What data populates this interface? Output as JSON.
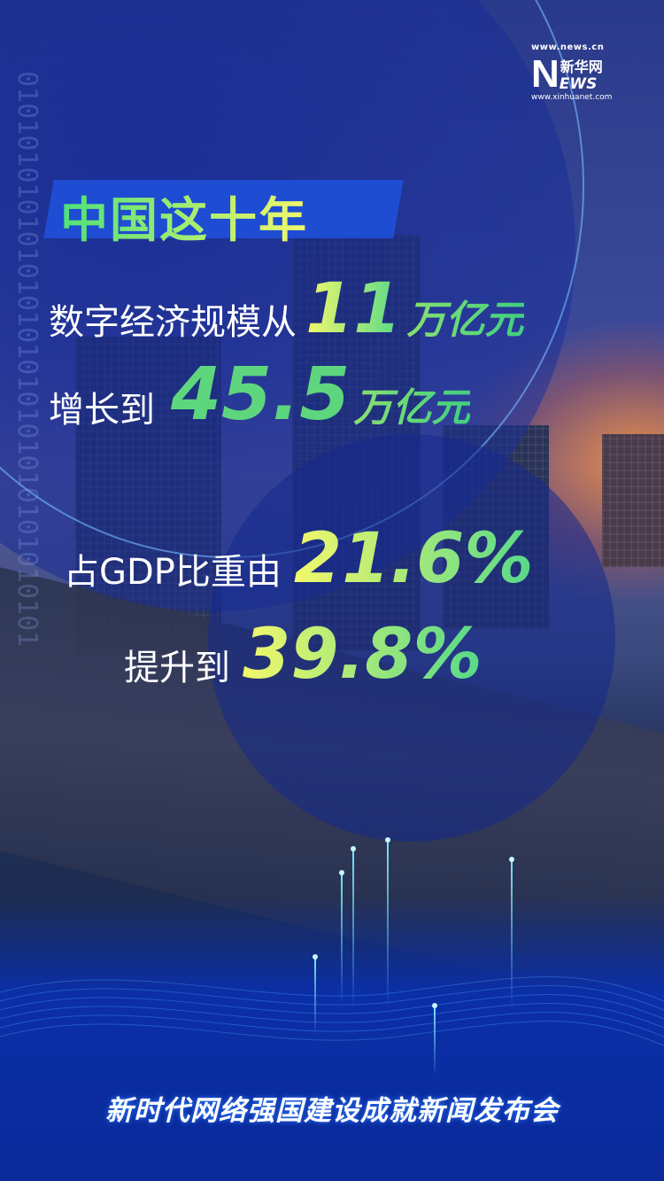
{
  "logo": {
    "url_top": "www.news.cn",
    "brand_cn": "新华网",
    "brand_letter": "N",
    "brand_rest": "EWS",
    "url_bottom": "www.xinhuanet.com"
  },
  "title": "中国这十年",
  "stat1": {
    "label": "数字经济规模从",
    "value": "11",
    "unit": "万亿元"
  },
  "stat2": {
    "label": "增长到",
    "value": "45.5",
    "unit": "万亿元"
  },
  "stat3": {
    "label": "占GDP比重由",
    "value": "21.6%"
  },
  "stat4": {
    "label": "提升到",
    "value": "39.8%"
  },
  "footer": "新时代网络强国建设成就新闻发布会",
  "colors": {
    "accent_green": "#4ee07a",
    "accent_yellow": "#f4f86a",
    "primary_blue": "#1e50d8"
  }
}
